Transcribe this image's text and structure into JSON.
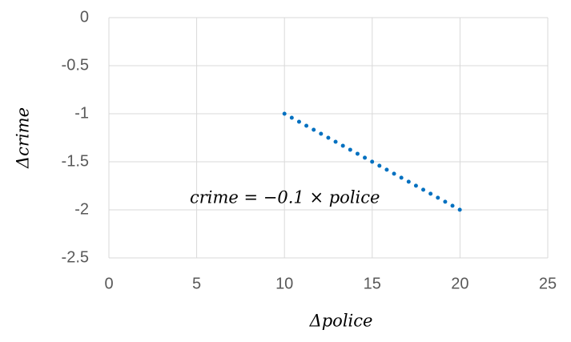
{
  "chart_data": {
    "type": "line",
    "x_label": "Δpolice",
    "y_label": "Δcrime",
    "annotation": "crime = −0.1 × police",
    "series": [
      {
        "color": "#0070c0",
        "x": [
          10,
          20
        ],
        "values": [
          -1,
          -2
        ]
      }
    ],
    "xlim": [
      0,
      25
    ],
    "xticks": [
      0,
      5,
      10,
      15,
      20,
      25
    ],
    "ylim": [
      -2.5,
      0
    ],
    "yticks": [
      0,
      -0.5,
      -1,
      -1.5,
      -2,
      -2.5
    ],
    "grid": true
  }
}
